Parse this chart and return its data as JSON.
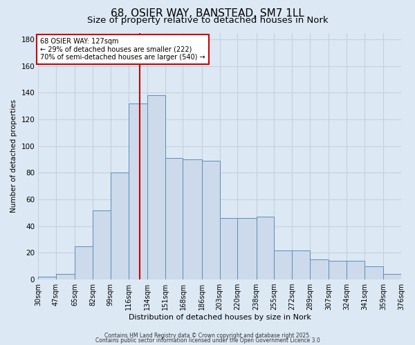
{
  "title_line1": "68, OSIER WAY, BANSTEAD, SM7 1LL",
  "title_line2": "Size of property relative to detached houses in Nork",
  "bar_labels": [
    "30sqm",
    "47sqm",
    "65sqm",
    "82sqm",
    "99sqm",
    "116sqm",
    "134sqm",
    "151sqm",
    "168sqm",
    "186sqm",
    "203sqm",
    "220sqm",
    "238sqm",
    "255sqm",
    "272sqm",
    "289sqm",
    "307sqm",
    "324sqm",
    "341sqm",
    "359sqm",
    "376sqm"
  ],
  "bin_edges": [
    30,
    47,
    65,
    82,
    99,
    116,
    134,
    151,
    168,
    186,
    203,
    220,
    238,
    255,
    272,
    289,
    307,
    324,
    341,
    359,
    376
  ],
  "heights": [
    2,
    4,
    25,
    52,
    80,
    132,
    138,
    91,
    90,
    89,
    46,
    46,
    47,
    22,
    22,
    15,
    14,
    14,
    10,
    4,
    4
  ],
  "ylabel": "Number of detached properties",
  "xlabel": "Distribution of detached houses by size in Nork",
  "bar_color": "#ccdaeb",
  "bar_edge_color": "#5b8db8",
  "vline_x": 127,
  "vline_color": "#cc0000",
  "annotation_title": "68 OSIER WAY: 127sqm",
  "annotation_line2": "← 29% of detached houses are smaller (222)",
  "annotation_line3": "70% of semi-detached houses are larger (540) →",
  "annotation_box_color": "#ffffff",
  "annotation_box_edge": "#cc0000",
  "yticks": [
    0,
    20,
    40,
    60,
    80,
    100,
    120,
    140,
    160,
    180
  ],
  "ylim": [
    0,
    185
  ],
  "grid_color": "#c8d0dc",
  "bg_color": "#dce8f4",
  "footer_line1": "Contains HM Land Registry data © Crown copyright and database right 2025.",
  "footer_line2": "Contains public sector information licensed under the Open Government Licence 3.0",
  "title_fontsize": 11,
  "subtitle_fontsize": 9.5
}
